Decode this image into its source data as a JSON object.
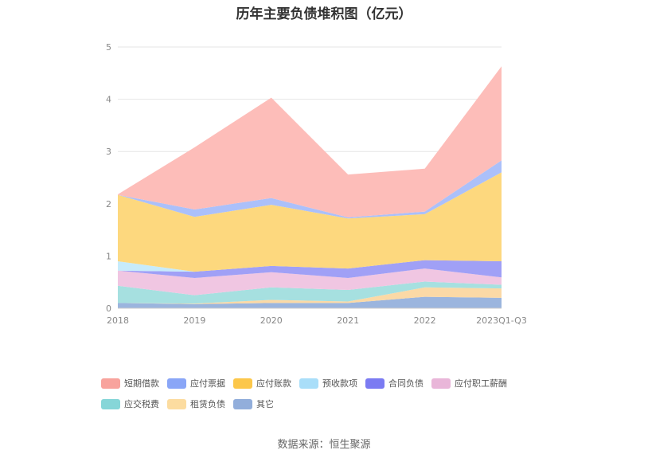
{
  "chart_data": {
    "type": "area",
    "stacked": true,
    "title": "历年主要负债堆积图（亿元）",
    "categories": [
      "2018",
      "2019",
      "2020",
      "2021",
      "2022",
      "2023Q1-Q3"
    ],
    "y_ticks": [
      "0",
      "1",
      "2",
      "3",
      "4",
      "5"
    ],
    "ylim": [
      0,
      5
    ],
    "grid": true,
    "legend_position": "bottom",
    "series": [
      {
        "name": "其它",
        "color": "#9bb5de",
        "values": [
          0.1,
          0.08,
          0.1,
          0.1,
          0.22,
          0.2
        ]
      },
      {
        "name": "租赁负债",
        "color": "#fbd9a6",
        "values": [
          0.0,
          0.01,
          0.06,
          0.03,
          0.18,
          0.18
        ]
      },
      {
        "name": "应交税费",
        "color": "#a6e0e0",
        "values": [
          0.33,
          0.16,
          0.24,
          0.22,
          0.11,
          0.07
        ]
      },
      {
        "name": "应付职工薪酬",
        "color": "#f0c6e2",
        "values": [
          0.29,
          0.33,
          0.29,
          0.23,
          0.25,
          0.14
        ]
      },
      {
        "name": "合同负债",
        "color": "#a0a0f6",
        "values": [
          0.0,
          0.12,
          0.12,
          0.18,
          0.16,
          0.31
        ]
      },
      {
        "name": "预收款项",
        "color": "#c7ebfb",
        "values": [
          0.18,
          0.0,
          0.0,
          0.0,
          0.0,
          0.0
        ]
      },
      {
        "name": "应付账款",
        "color": "#fdd87e",
        "values": [
          1.27,
          1.05,
          1.17,
          0.96,
          0.88,
          1.7
        ]
      },
      {
        "name": "应付票据",
        "color": "#abc0fa",
        "values": [
          0.0,
          0.14,
          0.13,
          0.02,
          0.05,
          0.23
        ]
      },
      {
        "name": "短期借款",
        "color": "#fdbdb9",
        "values": [
          0.01,
          1.19,
          1.92,
          0.82,
          0.82,
          1.8
        ]
      }
    ]
  },
  "legend": [
    {
      "name": "短期借款",
      "color": "#f8a39d"
    },
    {
      "name": "应付票据",
      "color": "#8aa6f7"
    },
    {
      "name": "应付账款",
      "color": "#fcc74a"
    },
    {
      "name": "预收款项",
      "color": "#a9def9"
    },
    {
      "name": "合同负债",
      "color": "#7b7bf2"
    },
    {
      "name": "应付职工薪酬",
      "color": "#e9b6d9"
    },
    {
      "name": "应交税费",
      "color": "#86d6d8"
    },
    {
      "name": "租赁负债",
      "color": "#fcdca0"
    },
    {
      "name": "其它",
      "color": "#92aedb"
    }
  ],
  "source_text": "数据来源：恒生聚源"
}
